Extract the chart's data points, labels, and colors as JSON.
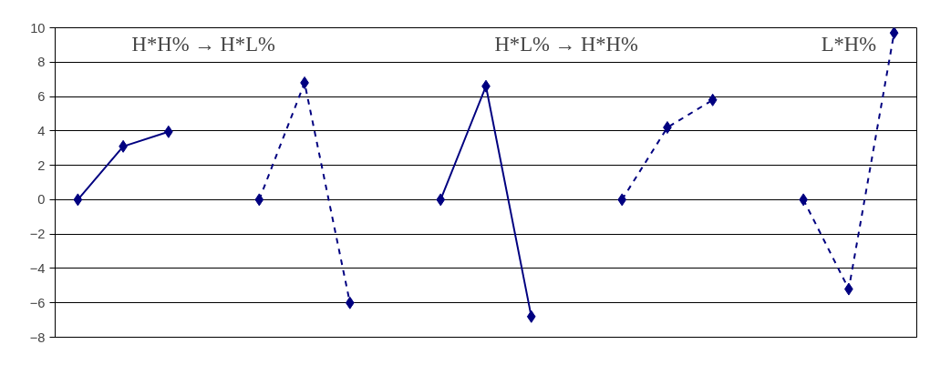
{
  "chart_data": {
    "type": "line",
    "categories": [
      null,
      null,
      null,
      null,
      null,
      null,
      null,
      null,
      null,
      null,
      null,
      null,
      null,
      null,
      null,
      null,
      null,
      null,
      null
    ],
    "series": [
      {
        "color": "#000080",
        "line_style": "solid",
        "values": [
          0,
          3.1,
          3.95,
          null,
          null,
          null,
          null,
          null,
          null,
          null,
          null,
          null,
          null,
          null,
          null,
          null,
          null,
          null,
          null
        ]
      },
      {
        "color": "#000080",
        "line_style": "dashed",
        "values": [
          null,
          null,
          null,
          null,
          0,
          6.8,
          -6,
          null,
          null,
          null,
          null,
          null,
          null,
          null,
          null,
          null,
          null,
          null,
          null
        ]
      },
      {
        "color": "#000080",
        "line_style": "solid",
        "values": [
          null,
          null,
          null,
          null,
          null,
          null,
          null,
          null,
          0,
          6.6,
          -6.8,
          null,
          null,
          null,
          null,
          null,
          null,
          null,
          null
        ]
      },
      {
        "color": "#000080",
        "line_style": "dashed",
        "values": [
          null,
          null,
          null,
          null,
          null,
          null,
          null,
          null,
          null,
          null,
          null,
          null,
          0,
          4.2,
          5.8,
          null,
          null,
          null,
          null
        ]
      },
      {
        "color": "#000080",
        "line_style": "dashed",
        "values": [
          null,
          null,
          null,
          null,
          null,
          null,
          null,
          null,
          null,
          null,
          null,
          null,
          null,
          null,
          null,
          null,
          0,
          -5.2,
          9.7
        ]
      }
    ],
    "annotations": [
      "H*H%   →   H*L%",
      "H*L%   →   H*H%",
      "L*H%"
    ],
    "ylim": [
      -8,
      10
    ],
    "yticks": [
      -8,
      -6,
      -4,
      -2,
      0,
      2,
      4,
      6,
      8,
      10
    ],
    "grid": "y",
    "marker": "diamond",
    "tick_labels": "y"
  }
}
